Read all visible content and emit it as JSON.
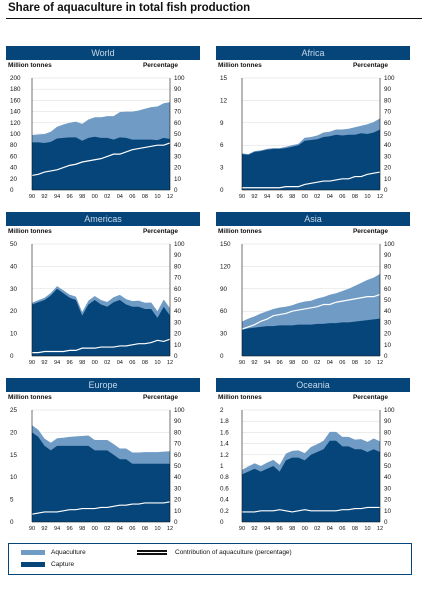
{
  "title": "Share of aquaculture in total fish production",
  "colors": {
    "capture": "#06457a",
    "aquaculture": "#6f9bc4",
    "header": "#06457a",
    "line": "#ffffff"
  },
  "legend": {
    "aquaculture": "Aquaculture",
    "capture": "Capture",
    "contribution": "Contribution of aquaculture (percentage)"
  },
  "units": {
    "left": "Million tonnes",
    "right": "Percentage"
  },
  "chart_data": [
    {
      "type": "area",
      "title": "World",
      "ylabel": "Million tonnes",
      "y2label": "Percentage",
      "x": [
        1990,
        1991,
        1992,
        1993,
        1994,
        1995,
        1996,
        1997,
        1998,
        1999,
        2000,
        2001,
        2002,
        2003,
        2004,
        2005,
        2006,
        2007,
        2008,
        2009,
        2010,
        2011,
        2012
      ],
      "xticks": [
        "90",
        "92",
        "94",
        "96",
        "98",
        "00",
        "02",
        "04",
        "06",
        "08",
        "10",
        "12"
      ],
      "ylim": [
        0,
        200
      ],
      "yticks": [
        0,
        20,
        40,
        60,
        80,
        100,
        120,
        140,
        160,
        180,
        200
      ],
      "y2lim": [
        0,
        100
      ],
      "y2ticks": [
        0,
        10,
        20,
        30,
        40,
        50,
        60,
        70,
        80,
        90,
        100
      ],
      "series": [
        {
          "name": "Capture",
          "values": [
            85,
            85,
            84,
            86,
            92,
            93,
            94,
            94,
            88,
            93,
            95,
            93,
            93,
            90,
            94,
            93,
            90,
            90,
            90,
            90,
            89,
            93,
            91
          ]
        },
        {
          "name": "Aquaculture",
          "values": [
            13,
            14,
            16,
            18,
            21,
            24,
            26,
            28,
            30,
            33,
            35,
            37,
            39,
            42,
            45,
            47,
            50,
            52,
            55,
            58,
            60,
            62,
            66
          ]
        },
        {
          "name": "Contribution of aquaculture (percentage)",
          "values": [
            13,
            14,
            16,
            17,
            18,
            20,
            22,
            23,
            25,
            26,
            27,
            28,
            30,
            32,
            32,
            34,
            36,
            37,
            38,
            39,
            40,
            40,
            42
          ]
        }
      ]
    },
    {
      "type": "area",
      "title": "Africa",
      "ylabel": "Million tonnes",
      "y2label": "Percentage",
      "x": [
        1990,
        1991,
        1992,
        1993,
        1994,
        1995,
        1996,
        1997,
        1998,
        1999,
        2000,
        2001,
        2002,
        2003,
        2004,
        2005,
        2006,
        2007,
        2008,
        2009,
        2010,
        2011,
        2012
      ],
      "xticks": [
        "90",
        "92",
        "94",
        "96",
        "98",
        "00",
        "02",
        "04",
        "06",
        "08",
        "10",
        "12"
      ],
      "ylim": [
        0,
        15
      ],
      "yticks": [
        0,
        3,
        6,
        9,
        12,
        15
      ],
      "y2lim": [
        0,
        100
      ],
      "y2ticks": [
        0,
        10,
        20,
        30,
        40,
        50,
        60,
        70,
        80,
        90,
        100
      ],
      "series": [
        {
          "name": "Capture",
          "values": [
            4.8,
            4.7,
            5.1,
            5.2,
            5.4,
            5.5,
            5.5,
            5.6,
            5.8,
            6.0,
            6.6,
            6.7,
            6.8,
            7.1,
            7.2,
            7.4,
            7.3,
            7.4,
            7.4,
            7.6,
            7.5,
            7.7,
            8.1
          ]
        },
        {
          "name": "Aquaculture",
          "values": [
            0.1,
            0.1,
            0.1,
            0.1,
            0.1,
            0.1,
            0.1,
            0.2,
            0.2,
            0.2,
            0.4,
            0.4,
            0.5,
            0.6,
            0.6,
            0.7,
            0.8,
            0.8,
            1.0,
            1.0,
            1.3,
            1.4,
            1.5
          ]
        },
        {
          "name": "Contribution of aquaculture (percentage)",
          "values": [
            2,
            2,
            2,
            2,
            2,
            2,
            2,
            3,
            3,
            3,
            5,
            6,
            7,
            8,
            8,
            9,
            10,
            10,
            12,
            12,
            14,
            15,
            16
          ]
        }
      ]
    },
    {
      "type": "area",
      "title": "Americas",
      "ylabel": "Million tonnes",
      "y2label": "Percentage",
      "x": [
        1990,
        1991,
        1992,
        1993,
        1994,
        1995,
        1996,
        1997,
        1998,
        1999,
        2000,
        2001,
        2002,
        2003,
        2004,
        2005,
        2006,
        2007,
        2008,
        2009,
        2010,
        2011,
        2012
      ],
      "xticks": [
        "90",
        "92",
        "94",
        "96",
        "98",
        "00",
        "02",
        "04",
        "06",
        "08",
        "10",
        "12"
      ],
      "ylim": [
        0,
        50
      ],
      "yticks": [
        0,
        10,
        20,
        30,
        40,
        50
      ],
      "y2lim": [
        0,
        100
      ],
      "y2ticks": [
        0,
        10,
        20,
        30,
        40,
        50,
        60,
        70,
        80,
        90,
        100
      ],
      "series": [
        {
          "name": "Capture",
          "values": [
            23,
            24,
            25,
            27,
            30,
            28,
            26,
            25,
            18,
            23,
            25,
            23,
            22,
            24,
            25,
            23,
            22,
            22,
            21,
            21,
            17,
            22,
            18
          ]
        },
        {
          "name": "Aquaculture",
          "values": [
            0.8,
            0.9,
            1.0,
            1.1,
            1.2,
            1.3,
            1.4,
            1.5,
            1.6,
            1.7,
            1.8,
            2.0,
            2.1,
            2.2,
            2.3,
            2.4,
            2.5,
            2.7,
            2.8,
            2.9,
            3.0,
            3.2,
            3.3
          ]
        },
        {
          "name": "Contribution of aquaculture (percentage)",
          "values": [
            3,
            3,
            4,
            4,
            4,
            4,
            5,
            5,
            7,
            7,
            7,
            8,
            8,
            8,
            9,
            9,
            10,
            11,
            11,
            12,
            14,
            13,
            15
          ]
        }
      ]
    },
    {
      "type": "area",
      "title": "Asia",
      "ylabel": "Million tonnes",
      "y2label": "Percentage",
      "x": [
        1990,
        1991,
        1992,
        1993,
        1994,
        1995,
        1996,
        1997,
        1998,
        1999,
        2000,
        2001,
        2002,
        2003,
        2004,
        2005,
        2006,
        2007,
        2008,
        2009,
        2010,
        2011,
        2012
      ],
      "xticks": [
        "90",
        "92",
        "94",
        "96",
        "98",
        "00",
        "02",
        "04",
        "06",
        "08",
        "10",
        "12"
      ],
      "ylim": [
        0,
        150
      ],
      "yticks": [
        0,
        30,
        60,
        90,
        120,
        150
      ],
      "y2lim": [
        0,
        100
      ],
      "y2ticks": [
        0,
        10,
        20,
        30,
        40,
        50,
        60,
        70,
        80,
        90,
        100
      ],
      "series": [
        {
          "name": "Capture",
          "values": [
            35,
            37,
            38,
            39,
            40,
            40,
            41,
            41,
            41,
            42,
            42,
            42,
            43,
            43,
            44,
            44,
            45,
            45,
            46,
            47,
            48,
            49,
            50
          ]
        },
        {
          "name": "Aquaculture",
          "values": [
            11,
            13,
            15,
            18,
            20,
            23,
            24,
            25,
            27,
            29,
            31,
            32,
            34,
            36,
            38,
            40,
            42,
            45,
            48,
            51,
            54,
            56,
            60
          ]
        },
        {
          "name": "Contribution of aquaculture (percentage)",
          "values": [
            24,
            26,
            28,
            31,
            33,
            36,
            37,
            38,
            40,
            41,
            42,
            43,
            44,
            46,
            46,
            48,
            49,
            50,
            51,
            52,
            53,
            53,
            55
          ]
        }
      ]
    },
    {
      "type": "area",
      "title": "Europe",
      "ylabel": "Million tonnes",
      "y2label": "Percentage",
      "x": [
        1990,
        1991,
        1992,
        1993,
        1994,
        1995,
        1996,
        1997,
        1998,
        1999,
        2000,
        2001,
        2002,
        2003,
        2004,
        2005,
        2006,
        2007,
        2008,
        2009,
        2010,
        2011,
        2012
      ],
      "xticks": [
        "90",
        "92",
        "94",
        "96",
        "98",
        "00",
        "02",
        "04",
        "06",
        "08",
        "10",
        "12"
      ],
      "ylim": [
        0,
        25
      ],
      "yticks": [
        0,
        5,
        10,
        15,
        20,
        25
      ],
      "y2lim": [
        0,
        100
      ],
      "y2ticks": [
        0,
        10,
        20,
        30,
        40,
        50,
        60,
        70,
        80,
        90,
        100
      ],
      "series": [
        {
          "name": "Capture",
          "values": [
            20,
            19,
            17,
            16,
            17,
            17,
            17,
            17,
            17,
            17,
            16,
            16,
            16,
            15,
            14,
            14,
            13,
            13,
            13,
            13,
            13,
            13,
            13
          ]
        },
        {
          "name": "Aquaculture",
          "values": [
            1.6,
            1.6,
            1.6,
            1.7,
            1.7,
            1.8,
            2.0,
            2.1,
            2.2,
            2.3,
            2.3,
            2.3,
            2.3,
            2.4,
            2.4,
            2.4,
            2.5,
            2.5,
            2.6,
            2.6,
            2.6,
            2.7,
            2.8
          ]
        },
        {
          "name": "Contribution of aquaculture (percentage)",
          "values": [
            7,
            8,
            9,
            9,
            9,
            10,
            11,
            11,
            12,
            12,
            12,
            13,
            13,
            14,
            15,
            15,
            16,
            16,
            17,
            17,
            17,
            17,
            18
          ]
        }
      ]
    },
    {
      "type": "area",
      "title": "Oceania",
      "ylabel": "Million tonnes",
      "y2label": "Percentage",
      "x": [
        1990,
        1991,
        1992,
        1993,
        1994,
        1995,
        1996,
        1997,
        1998,
        1999,
        2000,
        2001,
        2002,
        2003,
        2004,
        2005,
        2006,
        2007,
        2008,
        2009,
        2010,
        2011,
        2012
      ],
      "xticks": [
        "90",
        "92",
        "94",
        "96",
        "98",
        "00",
        "02",
        "04",
        "06",
        "08",
        "10",
        "12"
      ],
      "ylim": [
        0,
        2.0
      ],
      "yticks": [
        0,
        0.2,
        0.4,
        0.6,
        0.8,
        1.0,
        1.2,
        1.4,
        1.6,
        1.8,
        2.0
      ],
      "y2lim": [
        0,
        100
      ],
      "y2ticks": [
        0,
        10,
        20,
        30,
        40,
        50,
        60,
        70,
        80,
        90,
        100
      ],
      "series": [
        {
          "name": "Capture",
          "values": [
            0.85,
            0.9,
            0.95,
            0.9,
            0.95,
            1.0,
            0.9,
            1.1,
            1.15,
            1.15,
            1.1,
            1.2,
            1.25,
            1.3,
            1.45,
            1.45,
            1.35,
            1.35,
            1.3,
            1.3,
            1.25,
            1.3,
            1.25
          ]
        },
        {
          "name": "Aquaculture",
          "values": [
            0.08,
            0.09,
            0.1,
            0.1,
            0.11,
            0.11,
            0.12,
            0.12,
            0.12,
            0.13,
            0.13,
            0.14,
            0.14,
            0.15,
            0.16,
            0.16,
            0.17,
            0.17,
            0.17,
            0.18,
            0.18,
            0.19,
            0.19
          ]
        },
        {
          "name": "Contribution of aquaculture (percentage)",
          "values": [
            9,
            9,
            9,
            10,
            10,
            10,
            11,
            10,
            9,
            10,
            11,
            10,
            10,
            10,
            10,
            10,
            11,
            11,
            12,
            12,
            13,
            13,
            13
          ]
        }
      ]
    }
  ]
}
